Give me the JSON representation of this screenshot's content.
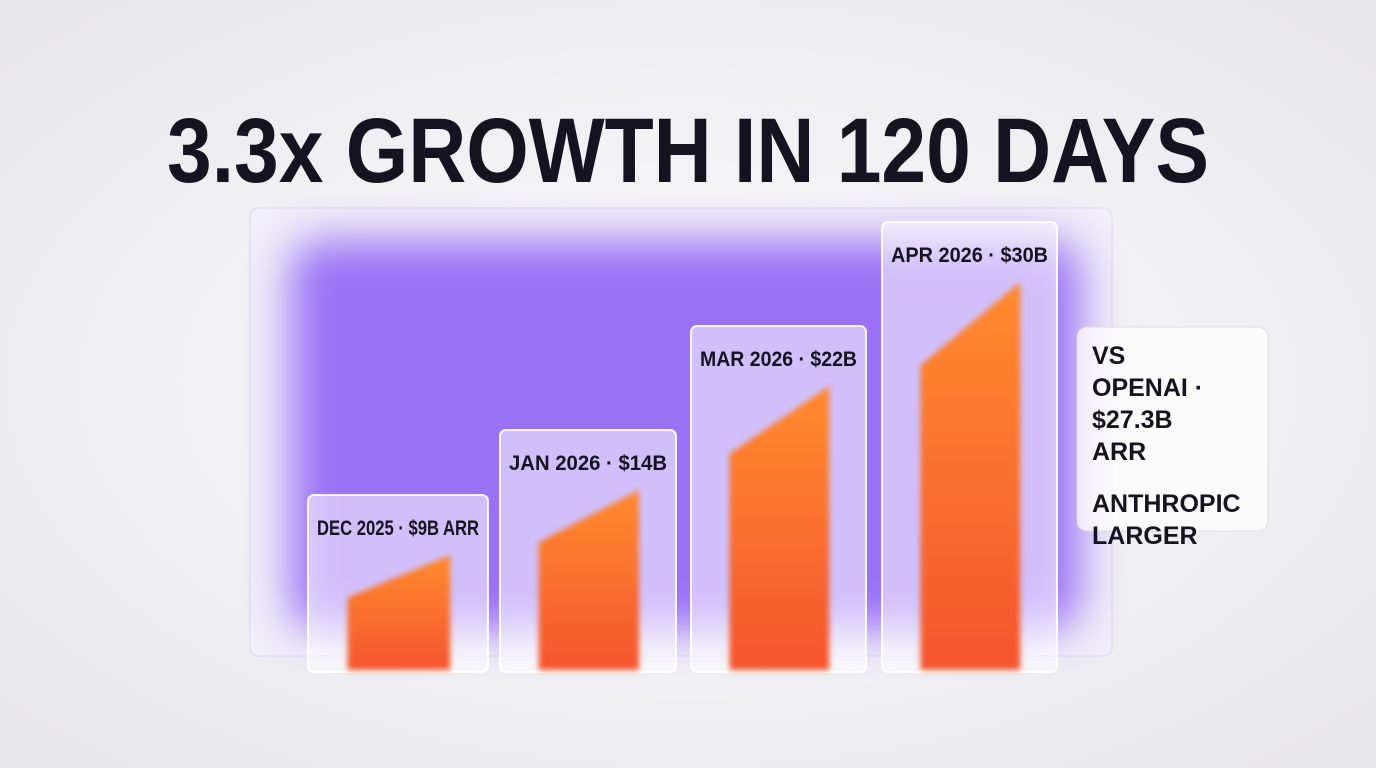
{
  "chart_data": {
    "type": "bar",
    "title": "3.3x GROWTH IN 120 DAYS",
    "values": [
      9,
      14,
      22,
      30
    ],
    "value_labels": [
      "DEC 2025 · $9B ARR",
      "JAN 2026 · $14B",
      "MAR 2026 · $22B",
      "APR 2026 · $30B"
    ],
    "color": "#ff6a2b",
    "annotations": [
      "VS OPENAI · $27.3B ARR",
      "ANTHROPIC LARGER"
    ]
  }
}
